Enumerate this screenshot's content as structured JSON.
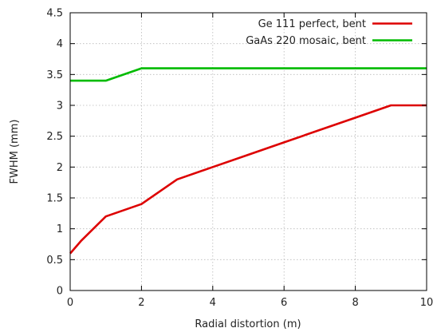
{
  "chart_data": {
    "type": "line",
    "xlabel": "Radial distortion (m)",
    "ylabel": "FWHM  (mm)",
    "xlim": [
      0,
      10
    ],
    "ylim": [
      0,
      4.5
    ],
    "xticks": [
      0,
      2,
      4,
      6,
      8,
      10
    ],
    "yticks": [
      0,
      0.5,
      1,
      1.5,
      2,
      2.5,
      3,
      3.5,
      4,
      4.5
    ],
    "grid": true,
    "legend_position": "top-right",
    "series": [
      {
        "name": "Ge 111 perfect, bent",
        "color": "#dd0000",
        "x": [
          0,
          0.3,
          1,
          2,
          3,
          4,
          5,
          6,
          7,
          8,
          9,
          10
        ],
        "y": [
          0.6,
          0.8,
          1.2,
          1.4,
          1.8,
          2.0,
          2.2,
          2.4,
          2.6,
          2.8,
          3.0,
          3.0
        ]
      },
      {
        "name": "GaAs 220 mosaic, bent",
        "color": "#00bb00",
        "x": [
          0,
          1,
          2,
          3,
          4,
          5,
          6,
          7,
          8,
          9,
          10
        ],
        "y": [
          3.4,
          3.4,
          3.6,
          3.6,
          3.6,
          3.6,
          3.6,
          3.6,
          3.6,
          3.6,
          3.6
        ]
      }
    ]
  }
}
